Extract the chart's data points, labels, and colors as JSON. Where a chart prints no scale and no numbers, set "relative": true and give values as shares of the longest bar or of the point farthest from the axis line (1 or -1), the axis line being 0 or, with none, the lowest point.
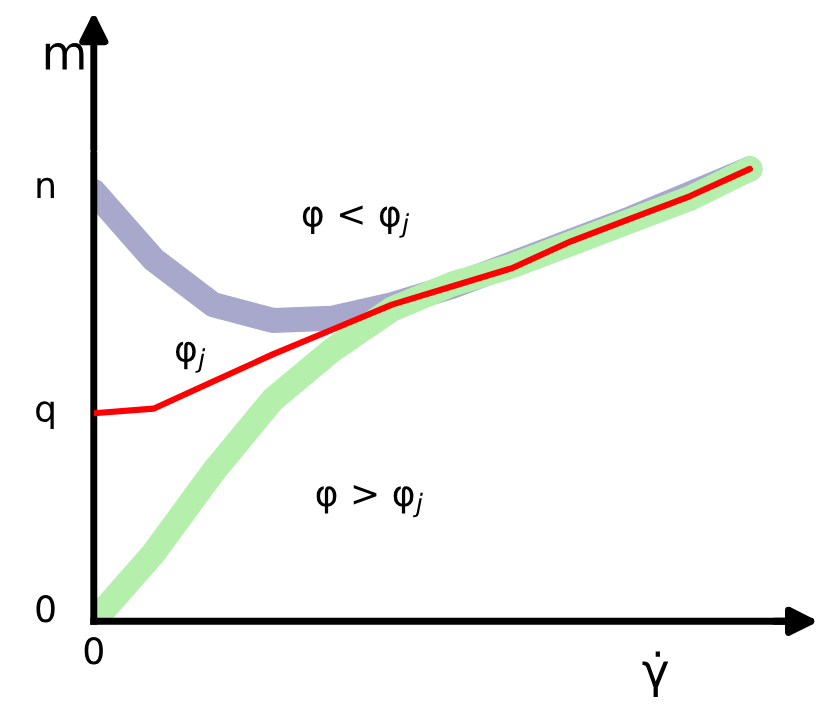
{
  "chart_data": {
    "type": "line",
    "relative": true,
    "xlabel": "γ̇",
    "ylabel": "m",
    "categories": [
      null,
      null,
      null,
      null,
      null,
      null,
      null,
      null,
      null,
      null,
      null,
      null
    ],
    "series": [
      {
        "color": "#a8a8cc",
        "values": [
          0.95,
          0.8,
          0.7,
          0.665,
          0.67,
          0.7,
          0.74,
          0.79,
          0.84,
          0.89,
          0.945,
          1.0
        ]
      },
      {
        "color": "#ff0000",
        "values": [
          0.46,
          0.47,
          0.53,
          0.59,
          0.645,
          0.7,
          0.74,
          0.78,
          0.84,
          0.89,
          0.94,
          1.0
        ]
      },
      {
        "color": "#b4f0ac",
        "values": [
          0.0,
          0.15,
          0.33,
          0.49,
          0.6,
          0.69,
          0.745,
          0.785,
          0.835,
          0.885,
          0.935,
          1.0
        ]
      }
    ],
    "annotations": [
      "φ < φ$_{j}$",
      "φ$_{j}$",
      "φ > φ$_{j}$",
      "n",
      "q",
      "0",
      "0"
    ]
  }
}
